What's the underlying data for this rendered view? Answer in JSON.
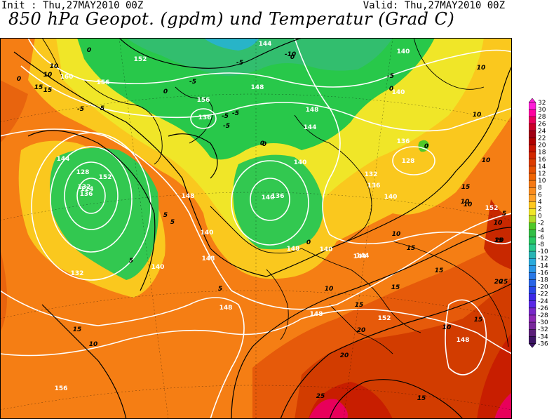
{
  "header": {
    "init": "Init : Thu,27MAY2010 00Z",
    "valid": "Valid: Thu,27MAY2010 00Z",
    "title": "850 hPa Geopot. (gpdm) und Temperatur (Grad C)"
  },
  "legend": {
    "ticks": [
      "32",
      "30",
      "28",
      "26",
      "24",
      "22",
      "20",
      "18",
      "16",
      "14",
      "12",
      "10",
      "8",
      "6",
      "4",
      "2",
      "0",
      "-2",
      "-4",
      "-6",
      "-8",
      "-10",
      "-12",
      "-14",
      "-16",
      "-18",
      "-20",
      "-22",
      "-24",
      "-26",
      "-28",
      "-30",
      "-32",
      "-34",
      "-36"
    ],
    "colors": [
      "#ff1ed8",
      "#ff00a0",
      "#e8005a",
      "#c80028",
      "#a00014",
      "#b00000",
      "#c81400",
      "#d22800",
      "#dc3c00",
      "#e65000",
      "#f06400",
      "#f57814",
      "#fa8c1e",
      "#ffa028",
      "#ffc81e",
      "#f0e628",
      "#b4dc28",
      "#50c828",
      "#32be46",
      "#28c864",
      "#28c88c",
      "#28b4b4",
      "#28aadc",
      "#2896e6",
      "#2878e6",
      "#2864e6",
      "#2846e6",
      "#3c28e6",
      "#5a28e6",
      "#7828c8",
      "#8c28b4",
      "#78289a",
      "#5a1e78",
      "#3c1464"
    ]
  },
  "geopotential_labels": [
    "152",
    "144",
    "140",
    "156",
    "148",
    "160",
    "156",
    "136",
    "140",
    "148",
    "144",
    "140",
    "136",
    "132",
    "128",
    "124",
    "152",
    "148",
    "140",
    "136",
    "132",
    "148",
    "144",
    "140",
    "136",
    "128",
    "132",
    "136",
    "140",
    "148",
    "140",
    "144",
    "148",
    "152",
    "148",
    "156",
    "148",
    "152",
    "144",
    "140"
  ],
  "temperature_labels": [
    "0",
    "10",
    "10",
    "15",
    "0",
    "-5",
    "5",
    "-5",
    "0",
    "-5",
    "0",
    "-10",
    "-5",
    "0",
    "-5",
    "-5",
    "0",
    "0",
    "5",
    "0",
    "-5",
    "5",
    "10",
    "15",
    "5",
    "10",
    "5",
    "0",
    "5",
    "10",
    "15",
    "10",
    "15",
    "15",
    "20",
    "15",
    "20",
    "20",
    "25",
    "15",
    "10",
    "15",
    "10",
    "15",
    "20",
    "25",
    "10",
    "10",
    "15",
    "10",
    "15",
    "10"
  ]
}
